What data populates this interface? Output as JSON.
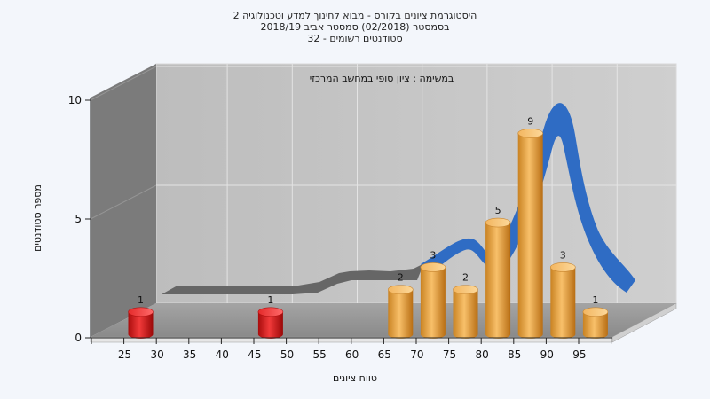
{
  "chart_data": {
    "type": "bar",
    "title": [
      "היסטוגרמת ציונים בקורס - מבוא לחינוך למדע וטכנולוגיה 2",
      "בסמסטר (02/2018) סמסטר אביב 2018/19",
      "סטודנטים רשומים - 32"
    ],
    "subtitle": "במשימה : ציון סופי במחשב המרכזי",
    "xlabel": "טווח ציונים",
    "ylabel": "מספר סטודנטים",
    "x_ticks": [
      "25",
      "30",
      "35",
      "40",
      "45",
      "50",
      "55",
      "60",
      "65",
      "70",
      "75",
      "80",
      "85",
      "90",
      "95"
    ],
    "y_ticks": [
      "0",
      "5",
      "10"
    ],
    "ylim": [
      0,
      10
    ],
    "grid": true,
    "bars": [
      {
        "x": 25,
        "value": 1,
        "label": "1",
        "color": "red"
      },
      {
        "x": 45,
        "value": 1,
        "label": "1",
        "color": "red"
      },
      {
        "x": 65,
        "value": 2,
        "label": "2",
        "color": "orange"
      },
      {
        "x": 70,
        "value": 3,
        "label": "3",
        "color": "orange"
      },
      {
        "x": 75,
        "value": 2,
        "label": "2",
        "color": "orange"
      },
      {
        "x": 80,
        "value": 5,
        "label": "5",
        "color": "orange"
      },
      {
        "x": 85,
        "value": 9,
        "label": "9",
        "color": "orange"
      },
      {
        "x": 90,
        "value": 3,
        "label": "3",
        "color": "orange"
      },
      {
        "x": 95,
        "value": 1,
        "label": "1",
        "color": "orange"
      }
    ],
    "colors": {
      "red_bar": "#e01818",
      "orange_bar": "#f0a848",
      "curve_blue": "#2f6cc4",
      "curve_gray": "#6b6b6b",
      "back_wall": "#c6c6c6",
      "side_wall": "#7c7c7c",
      "floor": "#9c9c9c"
    }
  }
}
